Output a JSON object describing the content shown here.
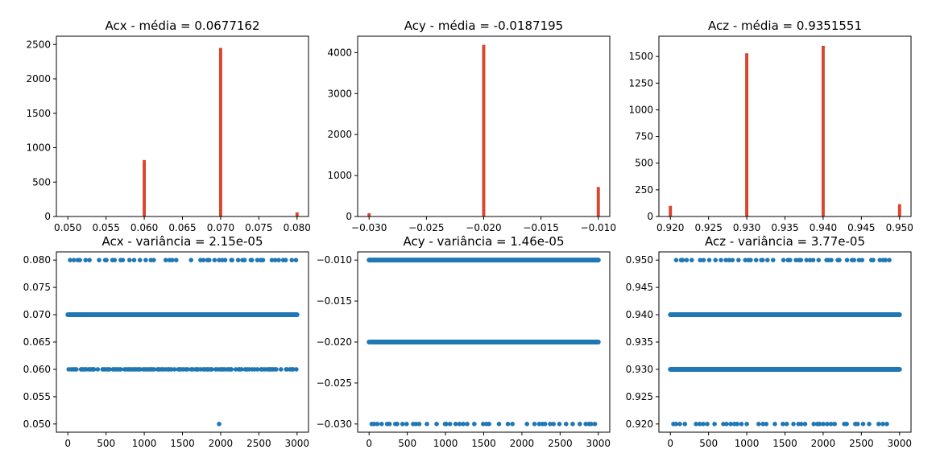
{
  "colors": {
    "hist_bar": "#d9452e",
    "scatter_point": "#1f77b4"
  },
  "chart_data": [
    {
      "type": "bar",
      "title": "Acx - média = 0.0677162",
      "x": [
        0.05,
        0.06,
        0.07,
        0.08
      ],
      "values": [
        0,
        820,
        2450,
        60
      ],
      "xlim": [
        0.0485,
        0.0815
      ],
      "ylim": [
        0,
        2620
      ],
      "xticks": [
        "0.050",
        "0.055",
        "0.060",
        "0.065",
        "0.070",
        "0.075",
        "0.080"
      ],
      "yticks": [
        "0",
        "500",
        "1000",
        "1500",
        "2000",
        "2500"
      ]
    },
    {
      "type": "bar",
      "title": "Acy - média = -0.0187195",
      "x": [
        -0.03,
        -0.02,
        -0.01
      ],
      "values": [
        80,
        4190,
        720
      ],
      "xlim": [
        -0.031,
        -0.009
      ],
      "ylim": [
        0,
        4400
      ],
      "xticks": [
        "−0.030",
        "−0.025",
        "−0.020",
        "−0.015",
        "−0.010"
      ],
      "yticks": [
        "0",
        "1000",
        "2000",
        "3000",
        "4000"
      ]
    },
    {
      "type": "bar",
      "title": "Acz - média = 0.9351551",
      "x": [
        0.92,
        0.93,
        0.94,
        0.95
      ],
      "values": [
        100,
        1530,
        1600,
        115
      ],
      "xlim": [
        0.9185,
        0.9515
      ],
      "ylim": [
        0,
        1690
      ],
      "xticks": [
        "0.920",
        "0.925",
        "0.930",
        "0.935",
        "0.940",
        "0.945",
        "0.950"
      ],
      "yticks": [
        "0",
        "250",
        "500",
        "750",
        "1000",
        "1250",
        "1500"
      ]
    },
    {
      "type": "scatter",
      "title": "Acx - variância = 2.15e-05",
      "xlim": [
        -150,
        3150
      ],
      "ylim": [
        0.0485,
        0.0815
      ],
      "levels": [
        {
          "y": 0.08,
          "density": "sparse"
        },
        {
          "y": 0.07,
          "density": "dense"
        },
        {
          "y": 0.06,
          "density": "medium"
        }
      ],
      "points": [
        [
          1980,
          0.05
        ]
      ],
      "xticks": [
        "0",
        "500",
        "1000",
        "1500",
        "2000",
        "2500",
        "3000"
      ],
      "yticks": [
        "0.050",
        "0.055",
        "0.060",
        "0.065",
        "0.070",
        "0.075",
        "0.080"
      ]
    },
    {
      "type": "scatter",
      "title": "Acy - variância = 1.46e-05",
      "xlim": [
        -150,
        3150
      ],
      "ylim": [
        -0.031,
        -0.009
      ],
      "levels": [
        {
          "y": -0.01,
          "density": "dense"
        },
        {
          "y": -0.02,
          "density": "dense"
        },
        {
          "y": -0.03,
          "density": "sparse"
        }
      ],
      "points": [],
      "xticks": [
        "0",
        "500",
        "1000",
        "1500",
        "2000",
        "2500",
        "3000"
      ],
      "yticks": [
        "−0.030",
        "−0.025",
        "−0.020",
        "−0.015",
        "−0.010"
      ]
    },
    {
      "type": "scatter",
      "title": "Acz - variância = 3.77e-05",
      "xlim": [
        -150,
        3150
      ],
      "ylim": [
        0.9185,
        0.9515
      ],
      "levels": [
        {
          "y": 0.95,
          "density": "sparse"
        },
        {
          "y": 0.94,
          "density": "dense"
        },
        {
          "y": 0.93,
          "density": "dense"
        },
        {
          "y": 0.92,
          "density": "sparse"
        }
      ],
      "points": [],
      "xticks": [
        "0",
        "500",
        "1000",
        "1500",
        "2000",
        "2500",
        "3000"
      ],
      "yticks": [
        "0.920",
        "0.925",
        "0.930",
        "0.935",
        "0.940",
        "0.945",
        "0.950"
      ]
    }
  ]
}
